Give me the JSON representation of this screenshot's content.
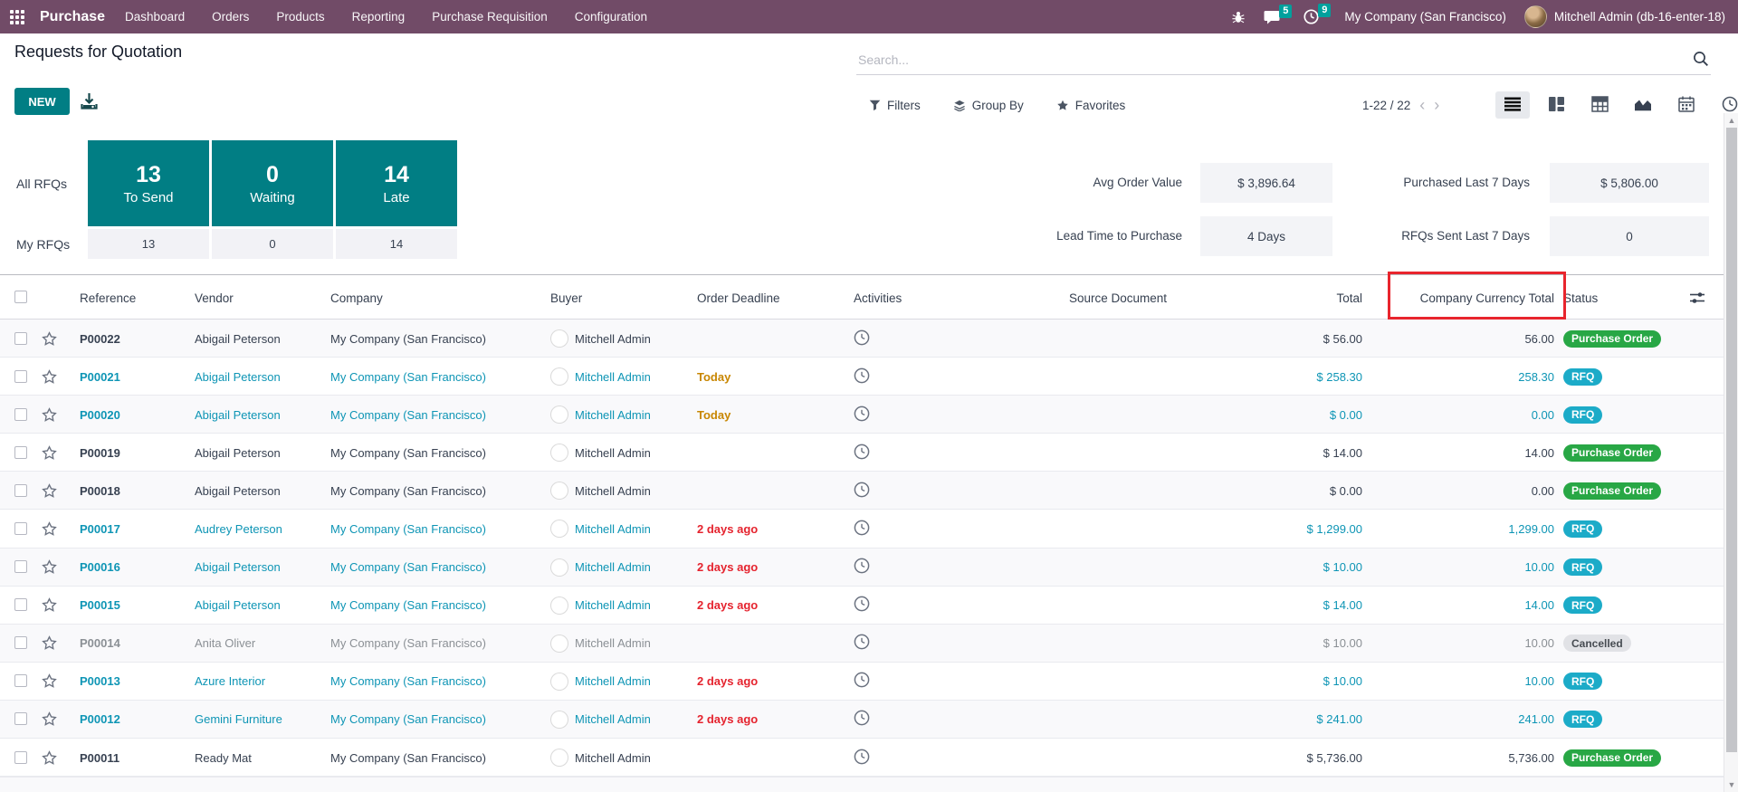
{
  "topbar": {
    "app_name": "Purchase",
    "menu_items": [
      "Dashboard",
      "Orders",
      "Products",
      "Reporting",
      "Purchase Requisition",
      "Configuration"
    ],
    "message_count": "5",
    "activity_count": "9",
    "company": "My Company (San Francisco)",
    "user": "Mitchell Admin (db-16-enter-18)"
  },
  "control_panel": {
    "title": "Requests for Quotation",
    "new_button": "NEW",
    "search_placeholder": "Search...",
    "filters_label": "Filters",
    "group_by_label": "Group By",
    "favorites_label": "Favorites",
    "pager": "1-22 / 22",
    "views": [
      {
        "name": "list",
        "active": true
      },
      {
        "name": "kanban",
        "active": false
      },
      {
        "name": "pivot",
        "active": false
      },
      {
        "name": "graph",
        "active": false
      },
      {
        "name": "calendar",
        "active": false
      },
      {
        "name": "activity",
        "active": false
      }
    ]
  },
  "dashboard": {
    "all_rfqs_label": "All RFQs",
    "my_rfqs_label": "My RFQs",
    "cards": [
      {
        "count": "13",
        "label": "To Send",
        "my_count": "13"
      },
      {
        "count": "0",
        "label": "Waiting",
        "my_count": "0"
      },
      {
        "count": "14",
        "label": "Late",
        "my_count": "14"
      }
    ],
    "stats": [
      {
        "label": "Avg Order Value",
        "value": "$ 3,896.64"
      },
      {
        "label": "Purchased Last 7 Days",
        "value": "$ 5,806.00"
      },
      {
        "label": "Lead Time to Purchase",
        "value": "4 Days"
      },
      {
        "label": "RFQs Sent Last 7 Days",
        "value": "0"
      }
    ]
  },
  "table": {
    "columns": [
      "Reference",
      "Vendor",
      "Company",
      "Buyer",
      "Order Deadline",
      "Activities",
      "Source Document",
      "Total",
      "Company Currency Total",
      "Status"
    ],
    "highlighted_column": "Company Currency Total",
    "rows": [
      {
        "reference": "P00022",
        "vendor": "Abigail Peterson",
        "company": "My Company (San Francisco)",
        "buyer": "Mitchell Admin",
        "deadline": "",
        "deadline_type": "",
        "total": "$ 56.00",
        "currency_total": "56.00",
        "status": "Purchase Order",
        "status_type": "success",
        "row_style": "normal"
      },
      {
        "reference": "P00021",
        "vendor": "Abigail Peterson",
        "company": "My Company (San Francisco)",
        "buyer": "Mitchell Admin",
        "deadline": "Today",
        "deadline_type": "today",
        "total": "$ 258.30",
        "currency_total": "258.30",
        "status": "RFQ",
        "status_type": "info",
        "row_style": "rfq"
      },
      {
        "reference": "P00020",
        "vendor": "Abigail Peterson",
        "company": "My Company (San Francisco)",
        "buyer": "Mitchell Admin",
        "deadline": "Today",
        "deadline_type": "today",
        "total": "$ 0.00",
        "currency_total": "0.00",
        "status": "RFQ",
        "status_type": "info",
        "row_style": "rfq"
      },
      {
        "reference": "P00019",
        "vendor": "Abigail Peterson",
        "company": "My Company (San Francisco)",
        "buyer": "Mitchell Admin",
        "deadline": "",
        "deadline_type": "",
        "total": "$ 14.00",
        "currency_total": "14.00",
        "status": "Purchase Order",
        "status_type": "success",
        "row_style": "normal"
      },
      {
        "reference": "P00018",
        "vendor": "Abigail Peterson",
        "company": "My Company (San Francisco)",
        "buyer": "Mitchell Admin",
        "deadline": "",
        "deadline_type": "",
        "total": "$ 0.00",
        "currency_total": "0.00",
        "status": "Purchase Order",
        "status_type": "success",
        "row_style": "normal"
      },
      {
        "reference": "P00017",
        "vendor": "Audrey Peterson",
        "company": "My Company (San Francisco)",
        "buyer": "Mitchell Admin",
        "deadline": "2 days ago",
        "deadline_type": "overdue",
        "total": "$ 1,299.00",
        "currency_total": "1,299.00",
        "status": "RFQ",
        "status_type": "info",
        "row_style": "rfq"
      },
      {
        "reference": "P00016",
        "vendor": "Abigail Peterson",
        "company": "My Company (San Francisco)",
        "buyer": "Mitchell Admin",
        "deadline": "2 days ago",
        "deadline_type": "overdue",
        "total": "$ 10.00",
        "currency_total": "10.00",
        "status": "RFQ",
        "status_type": "info",
        "row_style": "rfq"
      },
      {
        "reference": "P00015",
        "vendor": "Abigail Peterson",
        "company": "My Company (San Francisco)",
        "buyer": "Mitchell Admin",
        "deadline": "2 days ago",
        "deadline_type": "overdue",
        "total": "$ 14.00",
        "currency_total": "14.00",
        "status": "RFQ",
        "status_type": "info",
        "row_style": "rfq"
      },
      {
        "reference": "P00014",
        "vendor": "Anita Oliver",
        "company": "My Company (San Francisco)",
        "buyer": "Mitchell Admin",
        "deadline": "",
        "deadline_type": "",
        "total": "$ 10.00",
        "currency_total": "10.00",
        "status": "Cancelled",
        "status_type": "muted",
        "row_style": "muted"
      },
      {
        "reference": "P00013",
        "vendor": "Azure Interior",
        "company": "My Company (San Francisco)",
        "buyer": "Mitchell Admin",
        "deadline": "2 days ago",
        "deadline_type": "overdue",
        "total": "$ 10.00",
        "currency_total": "10.00",
        "status": "RFQ",
        "status_type": "info",
        "row_style": "rfq"
      },
      {
        "reference": "P00012",
        "vendor": "Gemini Furniture",
        "company": "My Company (San Francisco)",
        "buyer": "Mitchell Admin",
        "deadline": "2 days ago",
        "deadline_type": "overdue",
        "total": "$ 241.00",
        "currency_total": "241.00",
        "status": "RFQ",
        "status_type": "info",
        "row_style": "rfq"
      },
      {
        "reference": "P00011",
        "vendor": "Ready Mat",
        "company": "My Company (San Francisco)",
        "buyer": "Mitchell Admin",
        "deadline": "",
        "deadline_type": "",
        "total": "$ 5,736.00",
        "currency_total": "5,736.00",
        "status": "Purchase Order",
        "status_type": "success",
        "row_style": "normal"
      }
    ]
  },
  "colors": {
    "navbar_bg": "#714B67",
    "accent_teal": "#017E84",
    "notification_badge": "#00A09D",
    "rfq_text": "#0e95b5",
    "rfq_badge": "#1cabc8",
    "purchase_order_badge": "#28a745",
    "cancelled_badge": "#e1e2e6",
    "today_text": "#c88600",
    "overdue_text": "#e5232e",
    "annotation_red": "#e8252d"
  }
}
